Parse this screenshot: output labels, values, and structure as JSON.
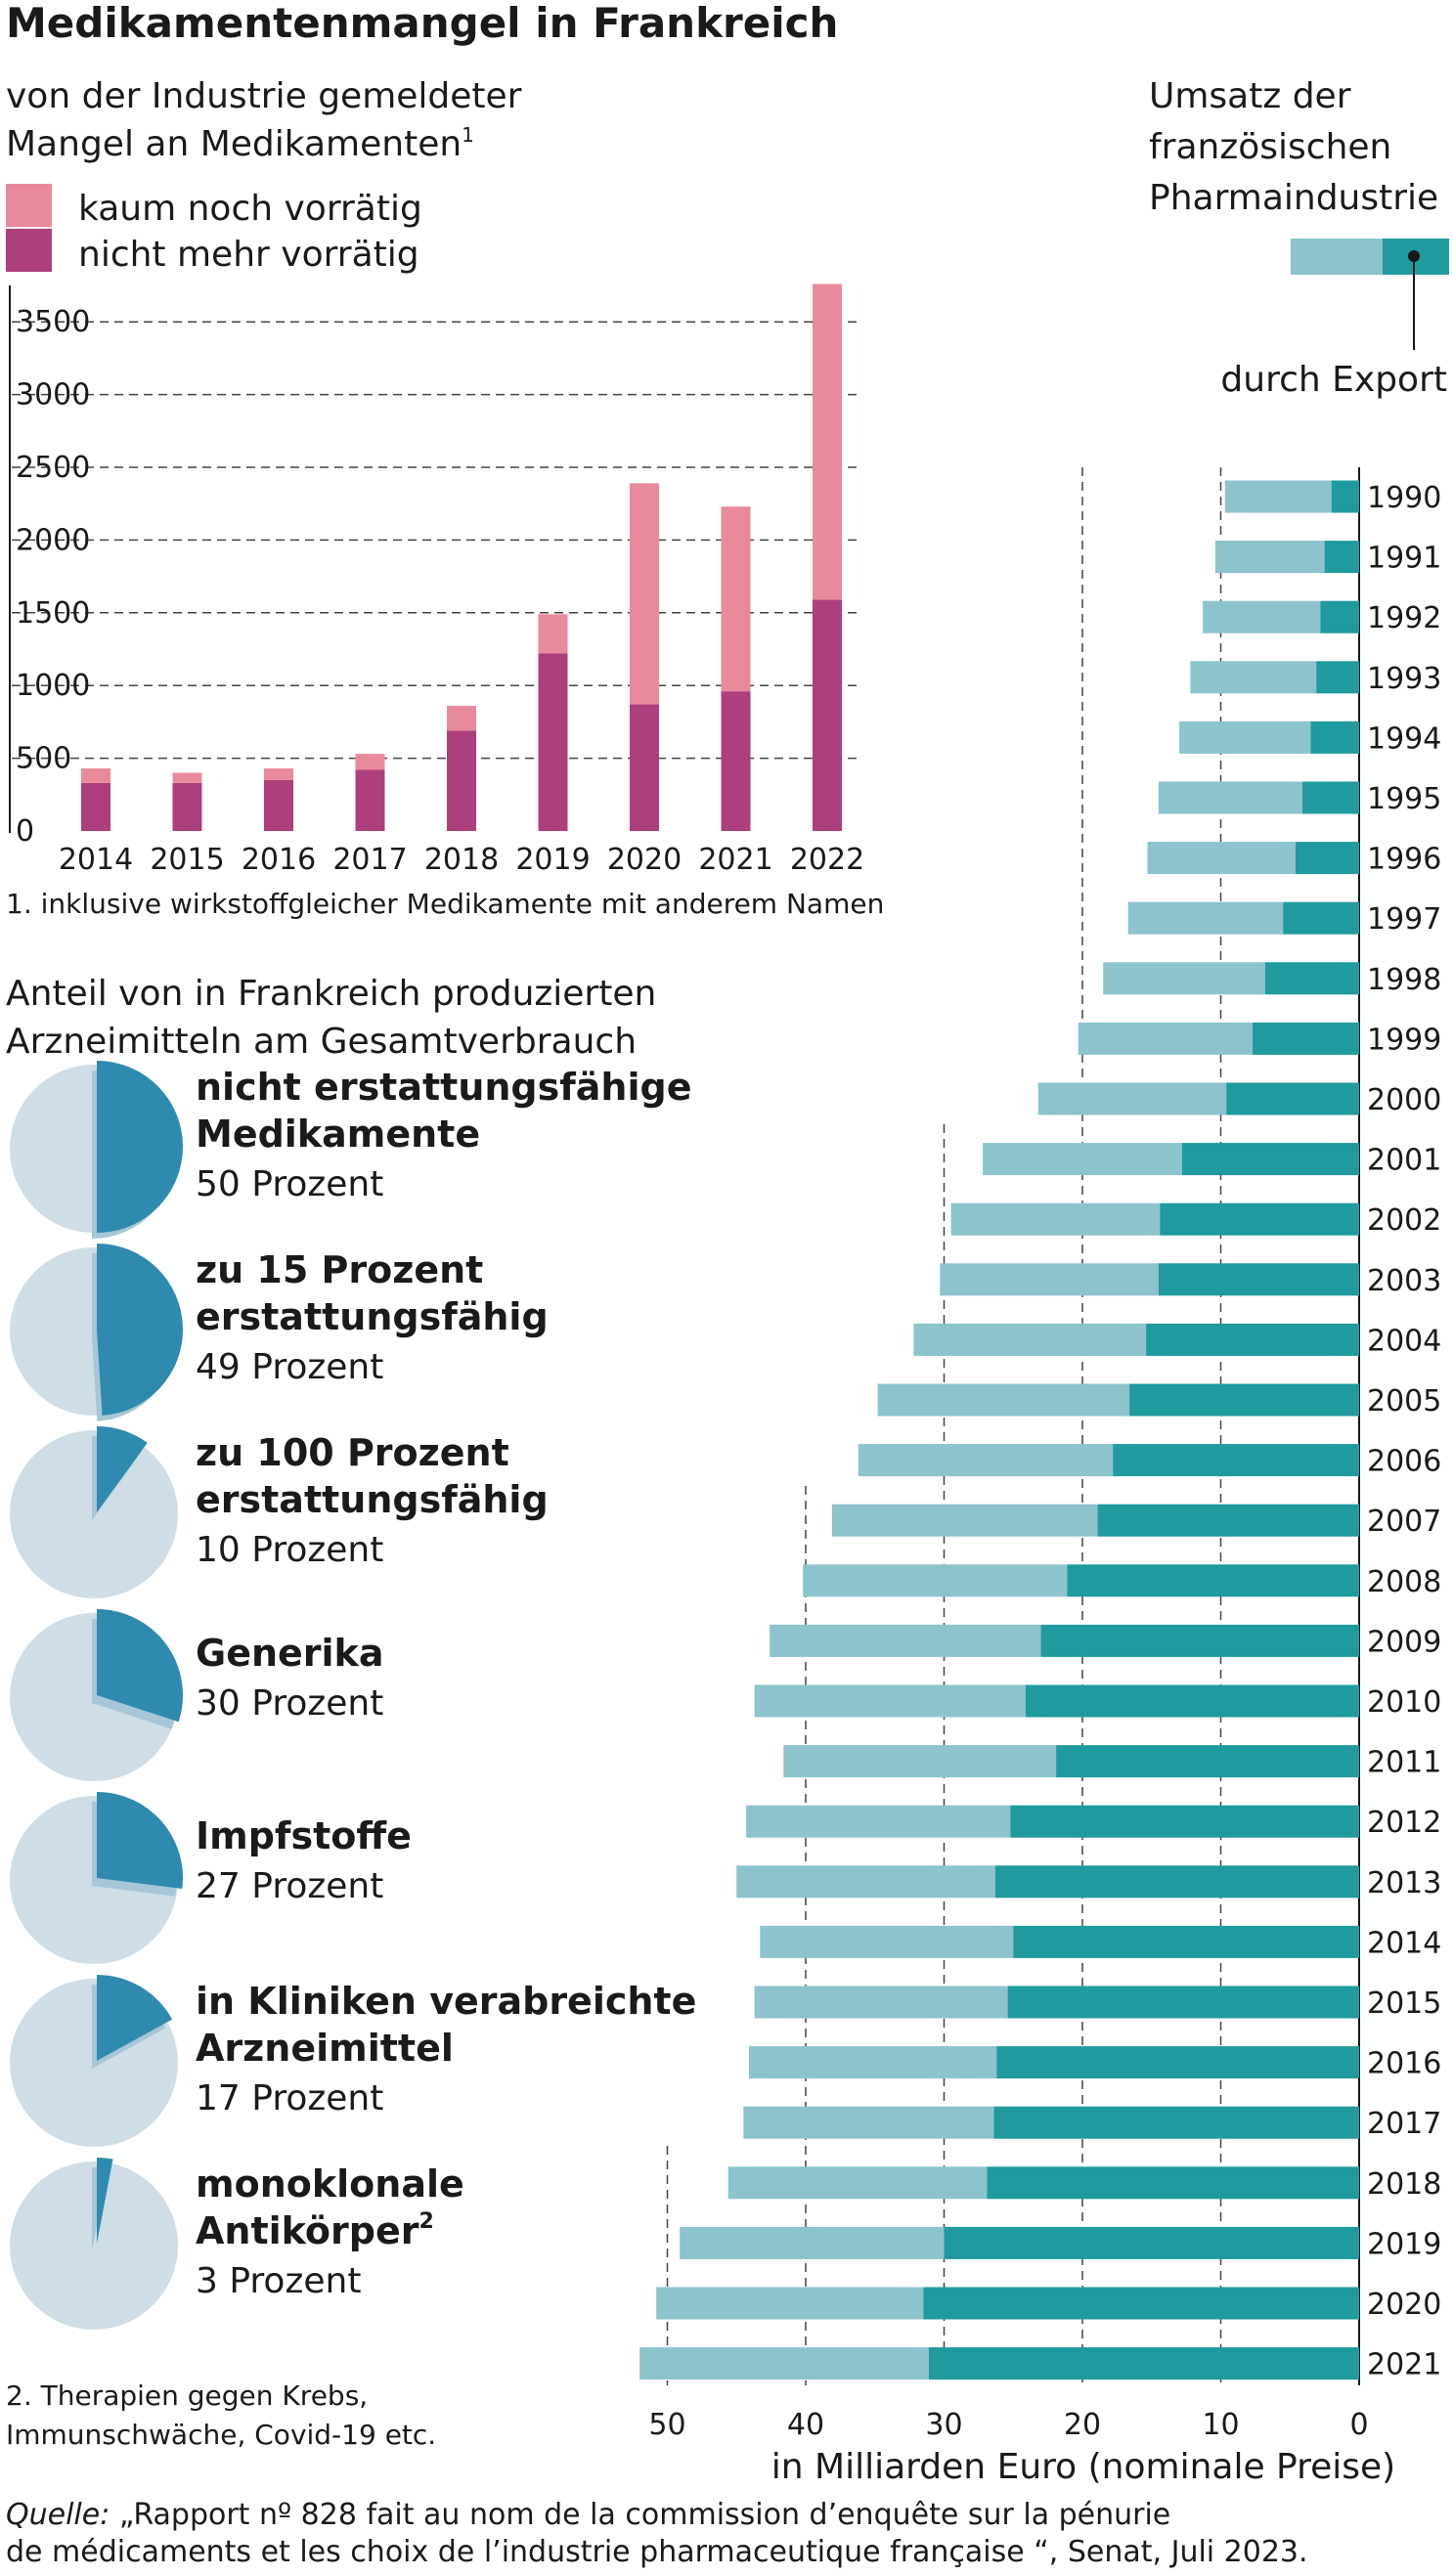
{
  "title": "Medikamentenmangel in Frankreich",
  "colors": {
    "shortage_low": "#e98a9c",
    "shortage_none": "#ad3f7c",
    "pie_bg": "#cfdde6",
    "pie_fg": "#2e8aae",
    "pie_shadow": "#a7c6d8",
    "sales_total": "#8cc3cd",
    "sales_export": "#1f9a9e"
  },
  "chart_data": [
    {
      "type": "bar",
      "stacked": true,
      "subtitle_lines": [
        "von der Industrie gemeldeter",
        "Mangel an Medikamenten"
      ],
      "subtitle_sup": "1",
      "categories": [
        "2014",
        "2015",
        "2016",
        "2017",
        "2018",
        "2019",
        "2020",
        "2021",
        "2022"
      ],
      "series": [
        {
          "name": "nicht mehr vorrätig",
          "values": [
            330,
            330,
            350,
            420,
            690,
            1220,
            870,
            960,
            1590
          ]
        },
        {
          "name": "kaum noch vorrätig",
          "values": [
            100,
            70,
            80,
            110,
            170,
            270,
            1520,
            1270,
            2170
          ]
        }
      ],
      "yticks": [
        "0",
        "500",
        "1000",
        "1500",
        "2000",
        "2500",
        "3000",
        "3500"
      ],
      "ylim": [
        0,
        3750
      ],
      "grid": "dashed",
      "legend": "top-left",
      "footnote": "1. inklusive wirkstoffgleicher Medikamente mit anderem Namen"
    },
    {
      "type": "pie",
      "title_lines": [
        "Anteil von in Frankreich produzierten",
        "Arzneimitteln am Gesamtverbrauch"
      ],
      "items": [
        {
          "label_lines": [
            "nicht erstattungsfähige",
            "Medikamente"
          ],
          "label_sup": "",
          "value": 50,
          "value_text": "50 Prozent"
        },
        {
          "label_lines": [
            "zu 15 Prozent",
            "erstattungsfähig"
          ],
          "label_sup": "",
          "value": 49,
          "value_text": "49 Prozent"
        },
        {
          "label_lines": [
            "zu 100 Prozent",
            "erstattungsfähig"
          ],
          "label_sup": "",
          "value": 10,
          "value_text": "10 Prozent"
        },
        {
          "label_lines": [
            "Generika"
          ],
          "label_sup": "",
          "value": 30,
          "value_text": "30 Prozent"
        },
        {
          "label_lines": [
            "Impfstoffe"
          ],
          "label_sup": "",
          "value": 27,
          "value_text": "27 Prozent"
        },
        {
          "label_lines": [
            "in Kliniken verabreichte",
            "Arzneimittel"
          ],
          "label_sup": "",
          "value": 17,
          "value_text": "17 Prozent"
        },
        {
          "label_lines": [
            "monoklonale",
            "Antikörper"
          ],
          "label_sup": "2",
          "value": 3,
          "value_text": "3 Prozent"
        }
      ],
      "footnote_lines": [
        "2. Therapien gegen Krebs,",
        "Immunschwäche, Covid-19 etc."
      ]
    },
    {
      "type": "bar",
      "orientation": "horizontal",
      "title_lines": [
        "Umsatz der",
        "französischen",
        "Pharmaindustrie"
      ],
      "legend_label": "durch Export",
      "years": [
        "1990",
        "1991",
        "1992",
        "1993",
        "1994",
        "1995",
        "1996",
        "1997",
        "1998",
        "1999",
        "2000",
        "2001",
        "2002",
        "2003",
        "2004",
        "2005",
        "2006",
        "2007",
        "2008",
        "2009",
        "2010",
        "2011",
        "2012",
        "2013",
        "2014",
        "2015",
        "2016",
        "2017",
        "2018",
        "2019",
        "2020",
        "2021"
      ],
      "series": [
        {
          "name": "Umsatz",
          "values": [
            9.7,
            10.4,
            11.3,
            12.2,
            13.0,
            14.5,
            15.3,
            16.7,
            18.5,
            20.3,
            23.2,
            27.2,
            29.5,
            30.3,
            32.2,
            34.8,
            36.2,
            38.1,
            40.2,
            42.6,
            43.7,
            41.6,
            44.3,
            45.0,
            43.3,
            43.7,
            44.1,
            44.5,
            45.6,
            49.1,
            50.8,
            52.0
          ]
        },
        {
          "name": "durch Export",
          "values": [
            2.0,
            2.5,
            2.8,
            3.1,
            3.5,
            4.1,
            4.6,
            5.5,
            6.8,
            7.7,
            9.6,
            12.8,
            14.4,
            14.5,
            15.4,
            16.6,
            17.8,
            18.9,
            21.1,
            23.0,
            24.1,
            21.9,
            25.2,
            26.3,
            25.0,
            25.4,
            26.2,
            26.4,
            26.9,
            30.0,
            31.5,
            31.1
          ]
        }
      ],
      "xticks": [
        "50",
        "40",
        "30",
        "20",
        "10",
        "0"
      ],
      "xlim": [
        0,
        52
      ],
      "xlabel": "in Milliarden Euro (nominale Preise)"
    }
  ],
  "source": {
    "label": "Quelle:",
    "line1": " „Rapport nº 828 fait au nom de la commission d’enquête sur la pénurie",
    "line2": "de médicaments et les choix de l’industrie pharmaceutique française “, Senat, Juli 2023."
  }
}
